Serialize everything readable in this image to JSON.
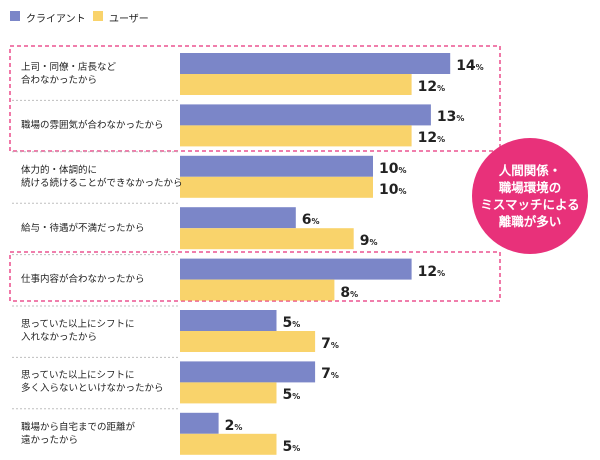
{
  "colors": {
    "series_1": "#7b86c8",
    "series_2": "#f9d36b",
    "highlight": "#e8317a",
    "separator": "#bfbfbf"
  },
  "legend": [
    {
      "label": "クライアント"
    },
    {
      "label": "ユーザー"
    }
  ],
  "callout": {
    "text": "人間関係・\n職場環境の\nミスマッチによる\n離職が多い"
  },
  "chart_data": {
    "type": "bar",
    "orientation": "horizontal",
    "unit": "%",
    "categories": [
      "上司・同僚・店長など\n合わなかったから",
      "職場の雰囲気が合わなかったから",
      "体力的・体調的に\n続ける続けることができなかったから",
      "給与・待遇が不満だったから",
      "仕事内容が合わなかったから",
      "思っていた以上にシフトに\n入れなかったから",
      "思っていた以上にシフトに\n多く入らないといけなかったから",
      "職場から自宅までの距離が\n遠かったから"
    ],
    "series": [
      {
        "name": "クライアント",
        "values": [
          14,
          13,
          10,
          6,
          12,
          5,
          7,
          2
        ]
      },
      {
        "name": "ユーザー",
        "values": [
          12,
          12,
          10,
          9,
          8,
          7,
          5,
          5
        ]
      }
    ],
    "xlim": [
      0,
      14
    ],
    "highlighted_categories": [
      0,
      1,
      4
    ]
  }
}
